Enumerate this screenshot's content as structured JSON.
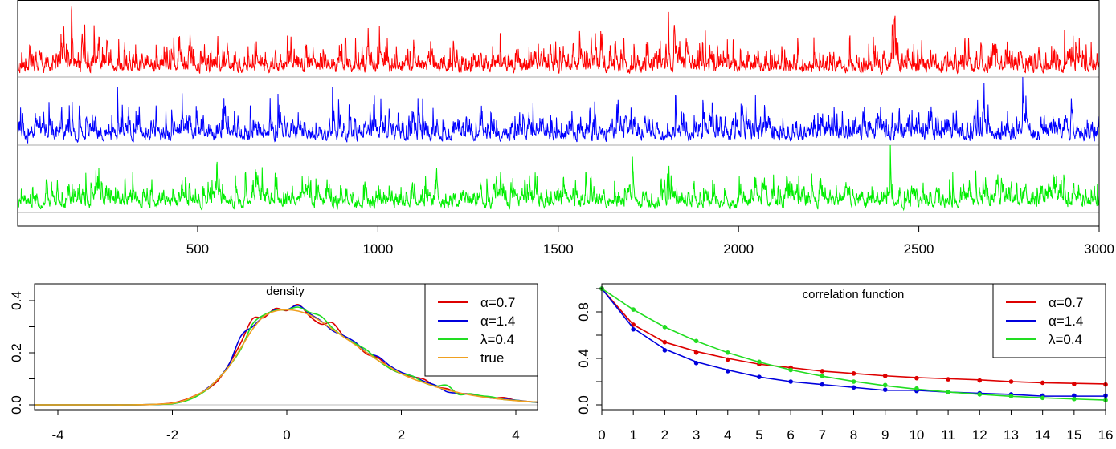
{
  "chart_data": [
    {
      "type": "line",
      "panel": "time-series",
      "title": "",
      "xlabel": "",
      "ylabel": "",
      "xlim": [
        1,
        3000
      ],
      "x_ticks": [
        "500",
        "1000",
        "1500",
        "2000",
        "2500",
        "3000"
      ],
      "x_tick_values": [
        500,
        1000,
        1500,
        2000,
        2500,
        3000
      ],
      "n": 3000,
      "series": [
        {
          "name": "α=0.7",
          "color": "#ff0000",
          "seed": 11,
          "phi": 0.55
        },
        {
          "name": "α=1.4",
          "color": "#0000ff",
          "seed": 23,
          "phi": 0.6
        },
        {
          "name": "λ=0.4",
          "color": "#00ee00",
          "seed": 37,
          "phi": 0.65
        }
      ]
    },
    {
      "type": "line",
      "panel": "density",
      "title": "density",
      "xlim": [
        -4.45,
        4.35
      ],
      "ylim": [
        0,
        0.4
      ],
      "x_ticks": [
        "-4",
        "-2",
        "0",
        "2",
        "4"
      ],
      "x_tick_values": [
        -4,
        -2,
        0,
        2,
        4
      ],
      "y_ticks": [
        "0.0",
        "0.2",
        "0.4"
      ],
      "y_tick_values": [
        0,
        0.2,
        0.4
      ],
      "y_minor_ticks": [
        0.1,
        0.3
      ],
      "legend_position": "top-right",
      "x": [
        -4.4,
        -4.0,
        -3.6,
        -3.2,
        -2.8,
        -2.4,
        -2.2,
        -2.0,
        -1.8,
        -1.6,
        -1.4,
        -1.2,
        -1.0,
        -0.8,
        -0.6,
        -0.4,
        -0.2,
        0.0,
        0.2,
        0.4,
        0.6,
        0.8,
        1.0,
        1.2,
        1.4,
        1.6,
        1.8,
        2.0,
        2.2,
        2.4,
        2.6,
        2.8,
        3.0,
        3.2,
        3.4,
        3.6,
        3.8,
        4.0,
        4.2,
        4.4
      ],
      "series": [
        {
          "name": "α=0.7",
          "color": "#dd0000",
          "values": [
            0,
            0,
            0,
            0,
            0,
            0.001,
            0.003,
            0.007,
            0.018,
            0.036,
            0.058,
            0.094,
            0.16,
            0.24,
            0.33,
            0.335,
            0.37,
            0.362,
            0.385,
            0.34,
            0.31,
            0.315,
            0.262,
            0.232,
            0.195,
            0.18,
            0.14,
            0.12,
            0.108,
            0.098,
            0.07,
            0.062,
            0.045,
            0.042,
            0.033,
            0.026,
            0.028,
            0.017,
            0.013,
            0.01
          ]
        },
        {
          "name": "α=1.4",
          "color": "#0000dd",
          "values": [
            0,
            0,
            0,
            0,
            0,
            0.001,
            0.002,
            0.005,
            0.014,
            0.032,
            0.062,
            0.1,
            0.16,
            0.265,
            0.3,
            0.34,
            0.365,
            0.365,
            0.382,
            0.35,
            0.322,
            0.285,
            0.265,
            0.24,
            0.2,
            0.185,
            0.15,
            0.125,
            0.11,
            0.09,
            0.075,
            0.05,
            0.045,
            0.04,
            0.033,
            0.025,
            0.022,
            0.018,
            0.013,
            0.008
          ]
        },
        {
          "name": "λ=0.4",
          "color": "#22dd22",
          "values": [
            0,
            0,
            0,
            0,
            0,
            0.001,
            0.002,
            0.004,
            0.013,
            0.03,
            0.058,
            0.1,
            0.15,
            0.215,
            0.31,
            0.345,
            0.362,
            0.365,
            0.375,
            0.355,
            0.34,
            0.295,
            0.26,
            0.235,
            0.21,
            0.17,
            0.14,
            0.12,
            0.11,
            0.085,
            0.072,
            0.075,
            0.04,
            0.043,
            0.035,
            0.03,
            0.02,
            0.017,
            0.012,
            0.01
          ]
        },
        {
          "name": "true",
          "color": "#f0a020",
          "values": [
            0,
            0,
            0,
            0,
            0,
            0.001,
            0.003,
            0.006,
            0.016,
            0.035,
            0.06,
            0.1,
            0.15,
            0.22,
            0.29,
            0.34,
            0.36,
            0.365,
            0.36,
            0.345,
            0.32,
            0.29,
            0.26,
            0.23,
            0.2,
            0.17,
            0.145,
            0.12,
            0.1,
            0.085,
            0.07,
            0.057,
            0.047,
            0.038,
            0.031,
            0.025,
            0.02,
            0.016,
            0.013,
            0.01
          ]
        }
      ]
    },
    {
      "type": "line",
      "panel": "correlation",
      "title": "correlation function",
      "xlim": [
        0,
        16
      ],
      "ylim": [
        0,
        1
      ],
      "x_ticks": [
        "0",
        "1",
        "2",
        "3",
        "4",
        "5",
        "6",
        "7",
        "8",
        "9",
        "10",
        "11",
        "12",
        "13",
        "14",
        "15",
        "16"
      ],
      "y_ticks": [
        "0.0",
        "0.4",
        "0.8"
      ],
      "y_tick_values": [
        0,
        0.4,
        0.8
      ],
      "y_minor_ticks": [
        0.2,
        0.6,
        1.0
      ],
      "legend_position": "top-right",
      "x": [
        0,
        1,
        2,
        3,
        4,
        5,
        6,
        7,
        8,
        9,
        10,
        11,
        12,
        13,
        14,
        15,
        16
      ],
      "series": [
        {
          "name": "α=0.7",
          "color": "#dd0000",
          "points": [
            1,
            0.69,
            0.54,
            0.45,
            0.39,
            0.35,
            0.32,
            0.29,
            0.27,
            0.25,
            0.23,
            0.22,
            0.21,
            0.2,
            0.19,
            0.18,
            0.175
          ],
          "line": [
            1,
            0.69,
            0.54,
            0.46,
            0.4,
            0.35,
            0.32,
            0.29,
            0.27,
            0.25,
            0.235,
            0.225,
            0.215,
            0.2,
            0.19,
            0.185,
            0.18
          ]
        },
        {
          "name": "α=1.4",
          "color": "#0000dd",
          "points": [
            1,
            0.65,
            0.47,
            0.36,
            0.29,
            0.24,
            0.2,
            0.175,
            0.15,
            0.13,
            0.12,
            0.11,
            0.1,
            0.09,
            0.08,
            0.08,
            0.08
          ],
          "line": [
            1,
            0.66,
            0.48,
            0.37,
            0.3,
            0.24,
            0.2,
            0.175,
            0.15,
            0.125,
            0.125,
            0.11,
            0.1,
            0.09,
            0.075,
            0.075,
            0.075
          ]
        },
        {
          "name": "λ=0.4",
          "color": "#22dd22",
          "points": [
            1,
            0.82,
            0.67,
            0.55,
            0.45,
            0.37,
            0.3,
            0.25,
            0.2,
            0.17,
            0.14,
            0.11,
            0.09,
            0.075,
            0.06,
            0.05,
            0.04
          ],
          "line": [
            1,
            0.819,
            0.67,
            0.549,
            0.449,
            0.368,
            0.301,
            0.247,
            0.202,
            0.165,
            0.135,
            0.111,
            0.091,
            0.074,
            0.061,
            0.05,
            0.041
          ]
        }
      ]
    }
  ]
}
